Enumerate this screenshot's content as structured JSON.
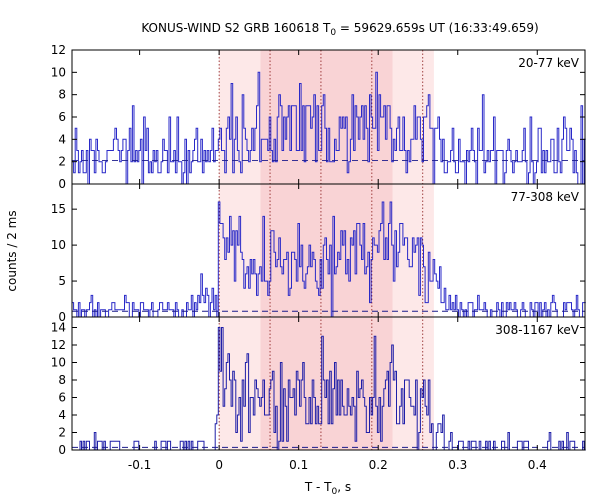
{
  "chart_data": {
    "type": "line",
    "title": "KONUS-WIND S2 GRB 160618 T",
    "title_sub": "0",
    "title_rest": " = 59629.659s UT (16:33:49.659)",
    "xlabel": "T - T",
    "xlabel_sub": "0",
    "xlabel_rest": ", s",
    "ylabel": "counts / 2 ms",
    "xlim": [
      -0.185,
      0.46
    ],
    "x_ticks": [
      -0.1,
      0,
      0.1,
      0.2,
      0.3,
      0.4
    ],
    "x_tick_labels": [
      "-0.1",
      "0",
      "0.1",
      "0.2",
      "0.3",
      "0.4"
    ],
    "bin_width": 0.002,
    "colors": {
      "band_outer": "#fde8e8",
      "band_inner": "#f9d3d5",
      "series_top": "#2a2ac8",
      "series_mid": "#2a2ac8",
      "series_bot": "#1f1fa8",
      "background_line": "#1a1a8a"
    },
    "shaded_intervals": [
      {
        "range": [
          0.0,
          0.27
        ],
        "level": "outer"
      },
      {
        "range": [
          0.052,
          0.218
        ],
        "level": "inner"
      }
    ],
    "vertical_dotted_lines": [
      0.0,
      0.064,
      0.128,
      0.192,
      0.256
    ],
    "panels": [
      {
        "name": "20-77 keV",
        "ylim": [
          0,
          12
        ],
        "y_ticks": [
          0,
          2,
          4,
          6,
          8,
          10,
          12
        ],
        "y_tick_labels": [
          "0",
          "2",
          "4",
          "6",
          "8",
          "10",
          "12"
        ],
        "background_level": 2.1,
        "segments": [
          {
            "x": [
              -0.185,
              0.0
            ],
            "y": [
              2.6,
              2.6
            ]
          },
          {
            "x": [
              0.0,
              0.27
            ],
            "y": [
              4.6,
              4.6
            ]
          },
          {
            "x": [
              0.27,
              0.46
            ],
            "y": [
              2.6,
              2.6
            ]
          }
        ]
      },
      {
        "name": "77-308 keV",
        "ylim": [
          0,
          18.5
        ],
        "y_ticks": [
          0,
          5,
          10,
          15
        ],
        "y_tick_labels": [
          "0",
          "5",
          "10",
          "15"
        ],
        "background_level": 0.8,
        "segments": [
          {
            "x": [
              -0.185,
              -0.03
            ],
            "y": [
              0.8,
              0.8
            ]
          },
          {
            "x": [
              -0.03,
              0.0
            ],
            "y": [
              2.2,
              2.2
            ]
          },
          {
            "x": [
              0.0,
              0.02
            ],
            "y": [
              12.0,
              9.5
            ]
          },
          {
            "x": [
              0.02,
              0.07
            ],
            "y": [
              8.5,
              6.0
            ]
          },
          {
            "x": [
              0.07,
              0.13
            ],
            "y": [
              7.5,
              7.5
            ]
          },
          {
            "x": [
              0.13,
              0.2
            ],
            "y": [
              9.0,
              9.0
            ]
          },
          {
            "x": [
              0.2,
              0.255
            ],
            "y": [
              9.5,
              9.0
            ]
          },
          {
            "x": [
              0.255,
              0.285
            ],
            "y": [
              7.0,
              3.5
            ]
          },
          {
            "x": [
              0.285,
              0.46
            ],
            "y": [
              0.9,
              0.9
            ]
          }
        ]
      },
      {
        "name": "308-1167 keV",
        "ylim": [
          0,
          15.2
        ],
        "y_ticks": [
          0,
          2,
          4,
          6,
          8,
          10,
          12,
          14
        ],
        "y_tick_labels": [
          "0",
          "2",
          "4",
          "6",
          "8",
          "10",
          "12",
          "14"
        ],
        "background_level": 0.3,
        "segments": [
          {
            "x": [
              -0.185,
              -0.005
            ],
            "y": [
              0.35,
              0.35
            ]
          },
          {
            "x": [
              -0.005,
              0.0
            ],
            "y": [
              4.0,
              4.0
            ]
          },
          {
            "x": [
              0.0,
              0.015
            ],
            "y": [
              11.5,
              8.5
            ]
          },
          {
            "x": [
              0.015,
              0.07
            ],
            "y": [
              6.0,
              5.0
            ]
          },
          {
            "x": [
              0.07,
              0.13
            ],
            "y": [
              5.5,
              5.5
            ]
          },
          {
            "x": [
              0.13,
              0.2
            ],
            "y": [
              6.0,
              6.0
            ]
          },
          {
            "x": [
              0.2,
              0.265
            ],
            "y": [
              6.0,
              5.5
            ]
          },
          {
            "x": [
              0.265,
              0.285
            ],
            "y": [
              2.5,
              1.0
            ]
          },
          {
            "x": [
              0.285,
              0.46
            ],
            "y": [
              0.3,
              0.3
            ]
          }
        ]
      }
    ]
  }
}
